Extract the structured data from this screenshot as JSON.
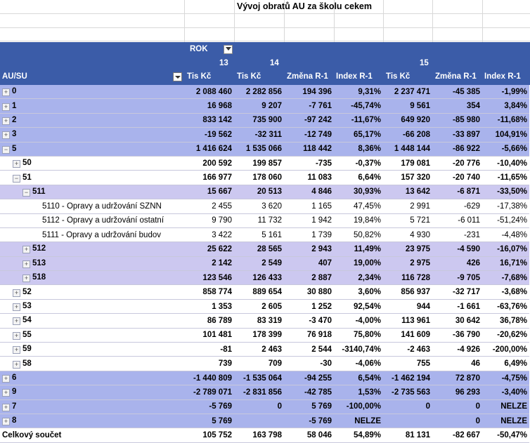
{
  "title": "Vývoj obratů AU za školu cekem",
  "header": {
    "rok_label": "ROK",
    "year_13": "13",
    "year_14": "14",
    "year_15": "15",
    "row_field": "AU/SU",
    "col_tis1": "Tis Kč",
    "col_tis2": "Tis Kč",
    "col_zmena1": "Změna R-1",
    "col_index1": "Index R-1",
    "col_tis3": "Tis Kč",
    "col_zmena2": "Změna R-1",
    "col_index2": "Index R-1"
  },
  "colors": {
    "header_bg": "#3b5ca8",
    "level0_bg": "#a9b3ec",
    "level2_bg": "#ccc8f0"
  },
  "rows": [
    {
      "level": 0,
      "exp": "+",
      "label": "0",
      "v": [
        "2 088 460",
        "2 282 856",
        "194 396",
        "9,31%",
        "2 237 471",
        "-45 385",
        "-1,99%"
      ]
    },
    {
      "level": 0,
      "exp": "+",
      "label": "1",
      "v": [
        "16 968",
        "9 207",
        "-7 761",
        "-45,74%",
        "9 561",
        "354",
        "3,84%"
      ]
    },
    {
      "level": 0,
      "exp": "+",
      "label": "2",
      "v": [
        "833 142",
        "735 900",
        "-97 242",
        "-11,67%",
        "649 920",
        "-85 980",
        "-11,68%"
      ]
    },
    {
      "level": 0,
      "exp": "+",
      "label": "3",
      "v": [
        "-19 562",
        "-32 311",
        "-12 749",
        "65,17%",
        "-66 208",
        "-33 897",
        "104,91%"
      ]
    },
    {
      "level": 0,
      "exp": "−",
      "label": "5",
      "v": [
        "1 416 624",
        "1 535 066",
        "118 442",
        "8,36%",
        "1 448 144",
        "-86 922",
        "-5,66%"
      ]
    },
    {
      "level": 1,
      "exp": "+",
      "label": "50",
      "v": [
        "200 592",
        "199 857",
        "-735",
        "-0,37%",
        "179 081",
        "-20 776",
        "-10,40%"
      ]
    },
    {
      "level": 1,
      "exp": "−",
      "label": "51",
      "v": [
        "166 977",
        "178 060",
        "11 083",
        "6,64%",
        "157 320",
        "-20 740",
        "-11,65%"
      ]
    },
    {
      "level": 2,
      "exp": "−",
      "label": "511",
      "v": [
        "15 667",
        "20 513",
        "4 846",
        "30,93%",
        "13 642",
        "-6 871",
        "-33,50%"
      ]
    },
    {
      "level": 3,
      "exp": "",
      "label": "5110 - Opravy a udržování SZNN",
      "v": [
        "2 455",
        "3 620",
        "1 165",
        "47,45%",
        "2 991",
        "-629",
        "-17,38%"
      ]
    },
    {
      "level": 3,
      "exp": "",
      "label": "5112 - Opravy a udržování ostatní",
      "v": [
        "9 790",
        "11 732",
        "1 942",
        "19,84%",
        "5 721",
        "-6 011",
        "-51,24%"
      ]
    },
    {
      "level": 3,
      "exp": "",
      "label": "5111 - Opravy a udržování budov",
      "v": [
        "3 422",
        "5 161",
        "1 739",
        "50,82%",
        "4 930",
        "-231",
        "-4,48%"
      ]
    },
    {
      "level": 2,
      "exp": "+",
      "label": "512",
      "v": [
        "25 622",
        "28 565",
        "2 943",
        "11,49%",
        "23 975",
        "-4 590",
        "-16,07%"
      ]
    },
    {
      "level": 2,
      "exp": "+",
      "label": "513",
      "v": [
        "2 142",
        "2 549",
        "407",
        "19,00%",
        "2 975",
        "426",
        "16,71%"
      ]
    },
    {
      "level": 2,
      "exp": "+",
      "label": "518",
      "v": [
        "123 546",
        "126 433",
        "2 887",
        "2,34%",
        "116 728",
        "-9 705",
        "-7,68%"
      ]
    },
    {
      "level": 1,
      "exp": "+",
      "label": "52",
      "v": [
        "858 774",
        "889 654",
        "30 880",
        "3,60%",
        "856 937",
        "-32 717",
        "-3,68%"
      ]
    },
    {
      "level": 1,
      "exp": "+",
      "label": "53",
      "v": [
        "1 353",
        "2 605",
        "1 252",
        "92,54%",
        "944",
        "-1 661",
        "-63,76%"
      ]
    },
    {
      "level": 1,
      "exp": "+",
      "label": "54",
      "v": [
        "86 789",
        "83 319",
        "-3 470",
        "-4,00%",
        "113 961",
        "30 642",
        "36,78%"
      ]
    },
    {
      "level": 1,
      "exp": "+",
      "label": "55",
      "v": [
        "101 481",
        "178 399",
        "76 918",
        "75,80%",
        "141 609",
        "-36 790",
        "-20,62%"
      ]
    },
    {
      "level": 1,
      "exp": "+",
      "label": "59",
      "v": [
        "-81",
        "2 463",
        "2 544",
        "-3140,74%",
        "-2 463",
        "-4 926",
        "-200,00%"
      ]
    },
    {
      "level": 1,
      "exp": "+",
      "label": "58",
      "v": [
        "739",
        "709",
        "-30",
        "-4,06%",
        "755",
        "46",
        "6,49%"
      ]
    },
    {
      "level": 0,
      "exp": "+",
      "label": "6",
      "v": [
        "-1 440 809",
        "-1 535 064",
        "-94 255",
        "6,54%",
        "-1 462 194",
        "72 870",
        "-4,75%"
      ]
    },
    {
      "level": 0,
      "exp": "+",
      "label": "9",
      "v": [
        "-2 789 071",
        "-2 831 856",
        "-42 785",
        "1,53%",
        "-2 735 563",
        "96 293",
        "-3,40%"
      ]
    },
    {
      "level": 0,
      "exp": "+",
      "label": "7",
      "v": [
        "-5 769",
        "0",
        "5 769",
        "-100,00%",
        "0",
        "0",
        "NELZE"
      ]
    },
    {
      "level": 0,
      "exp": "+",
      "label": "8",
      "v": [
        "5 769",
        "",
        "-5 769",
        "NELZE",
        "",
        "0",
        "NELZE"
      ]
    }
  ],
  "total": {
    "label": "Celkový součet",
    "v": [
      "105 752",
      "163 798",
      "58 046",
      "54,89%",
      "81 131",
      "-82 667",
      "-50,47%"
    ]
  }
}
